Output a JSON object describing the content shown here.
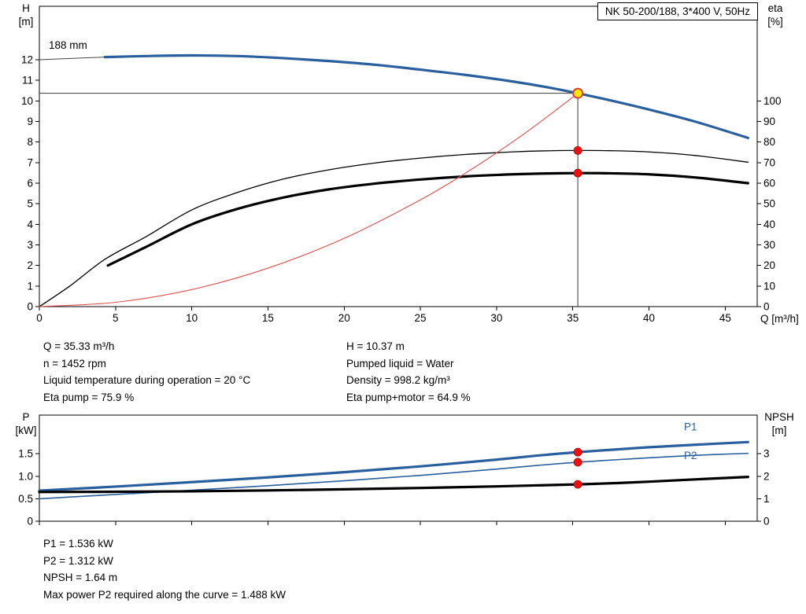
{
  "title_box": "NK 50-200/188, 3*400 V, 50Hz",
  "impeller_label": "188 mm",
  "axis_titles": {
    "h": "H\n[m]",
    "eta": "eta\n[%]",
    "q": "Q [m³/h]",
    "p": "P\n[kW]",
    "npsh": "NPSH\n[m]"
  },
  "info_top": {
    "col1": [
      "Q = 35.33 m³/h",
      "n = 1452 rpm",
      "Liquid temperature during operation = 20 °C",
      "Eta pump = 75.9 %"
    ],
    "col2": [
      "H = 10.37 m",
      "Pumped liquid = Water",
      "Density = 998.2 kg/m³",
      "Eta pump+motor = 64.9 %"
    ]
  },
  "info_bottom": [
    "P1 = 1.536 kW",
    "P2 = 1.312 kW",
    "NPSH = 1.64 m",
    "Max power P2 required along the curve = 1.488 kW"
  ],
  "colors": {
    "curve_blue": "#2a5f9e",
    "curve_black": "#000000",
    "system_red": "#e05050",
    "dot_red": "#ee1111",
    "duty_fill": "#ffe800",
    "duty_ring": "#e03030",
    "duty_line": "#3a3a3a"
  },
  "chart_data": [
    {
      "type": "line",
      "title": "NK 50-200/188, 3*400 V, 50Hz",
      "xlabel": "Q [m³/h]",
      "ylabel_left": "H [m]",
      "ylabel_right": "eta [%]",
      "xlim": [
        0,
        47.1
      ],
      "ylim_left": [
        0,
        14.6
      ],
      "ylim_right": [
        0,
        146
      ],
      "grid": false,
      "x_ticks": [
        [
          0,
          "0"
        ],
        [
          5,
          "5"
        ],
        [
          10,
          "10"
        ],
        [
          15,
          "15"
        ],
        [
          20,
          "20"
        ],
        [
          25,
          "25"
        ],
        [
          30,
          "30"
        ],
        [
          35,
          "35"
        ],
        [
          40,
          "40"
        ],
        [
          45,
          "45"
        ]
      ],
      "y_ticks_left": [
        [
          0,
          "0"
        ],
        [
          1,
          "1"
        ],
        [
          2,
          "2"
        ],
        [
          3,
          "3"
        ],
        [
          4,
          "4"
        ],
        [
          5,
          "5"
        ],
        [
          6,
          "6"
        ],
        [
          7,
          "7"
        ],
        [
          8,
          "8"
        ],
        [
          9,
          "9"
        ],
        [
          10,
          "10"
        ],
        [
          11,
          "11"
        ],
        [
          12,
          "12"
        ]
      ],
      "y_ticks_right": [
        [
          0,
          "0"
        ],
        [
          10,
          "10"
        ],
        [
          20,
          "20"
        ],
        [
          30,
          "30"
        ],
        [
          40,
          "40"
        ],
        [
          50,
          "50"
        ],
        [
          60,
          "60"
        ],
        [
          70,
          "70"
        ],
        [
          80,
          "80"
        ],
        [
          90,
          "90"
        ],
        [
          100,
          "100"
        ]
      ],
      "duty_lines": {
        "q": 35.33,
        "h": 10.37
      },
      "series": [
        {
          "name": "h-curve-leader",
          "axis": "left",
          "color": "#444444",
          "width": 1,
          "points": [
            [
              0,
              12.0
            ],
            [
              2.2,
              12.07
            ],
            [
              4.3,
              12.13
            ]
          ]
        },
        {
          "name": "h-curve-188mm",
          "axis": "left",
          "color": "#2a5f9e",
          "width": 3.2,
          "points": [
            [
              4.3,
              12.13
            ],
            [
              7,
              12.18
            ],
            [
              10,
              12.21
            ],
            [
              13,
              12.18
            ],
            [
              16,
              12.08
            ],
            [
              19,
              11.94
            ],
            [
              22,
              11.76
            ],
            [
              25,
              11.52
            ],
            [
              28,
              11.26
            ],
            [
              31,
              10.95
            ],
            [
              33.2,
              10.68
            ],
            [
              35.33,
              10.37
            ],
            [
              37.5,
              10.02
            ],
            [
              40,
              9.58
            ],
            [
              43,
              9.0
            ],
            [
              46.5,
              8.2
            ]
          ]
        },
        {
          "name": "eta-pump-curve",
          "axis": "right",
          "color": "#000000",
          "width": 1.3,
          "points": [
            [
              0,
              0
            ],
            [
              2,
              10
            ],
            [
              4.3,
              23
            ],
            [
              7,
              34
            ],
            [
              10,
              47
            ],
            [
              13,
              55.5
            ],
            [
              16,
              62
            ],
            [
              19,
              66.5
            ],
            [
              22,
              69.8
            ],
            [
              25,
              72.2
            ],
            [
              28,
              74
            ],
            [
              31,
              75.2
            ],
            [
              33,
              75.7
            ],
            [
              35.33,
              75.9
            ],
            [
              37.5,
              75.8
            ],
            [
              40,
              75.2
            ],
            [
              43,
              73.5
            ],
            [
              46.5,
              70.2
            ]
          ]
        },
        {
          "name": "eta-pump-motor-curve",
          "axis": "right",
          "color": "#000000",
          "width": 3.2,
          "points": [
            [
              4.5,
              20
            ],
            [
              7,
              29
            ],
            [
              10,
              40
            ],
            [
              13,
              47.5
            ],
            [
              16,
              53
            ],
            [
              19,
              57
            ],
            [
              22,
              59.8
            ],
            [
              25,
              61.8
            ],
            [
              28,
              63.3
            ],
            [
              31,
              64.3
            ],
            [
              33,
              64.7
            ],
            [
              35.33,
              64.9
            ],
            [
              37.5,
              64.8
            ],
            [
              40,
              64.3
            ],
            [
              43,
              62.8
            ],
            [
              46.5,
              60
            ]
          ]
        },
        {
          "name": "system-curve",
          "axis": "left",
          "color": "#e05050",
          "width": 1.1,
          "points": [
            [
              0,
              0
            ],
            [
              5,
              0.21
            ],
            [
              10,
              0.83
            ],
            [
              15,
              1.87
            ],
            [
              20,
              3.32
            ],
            [
              25,
              5.19
            ],
            [
              28,
              6.51
            ],
            [
              31,
              7.98
            ],
            [
              33,
              9.05
            ],
            [
              35.33,
              10.37
            ]
          ]
        }
      ],
      "labels": [],
      "markers": [
        {
          "x": 35.33,
          "y": 10.37,
          "axis": "left",
          "style": "duty",
          "name": "duty-point"
        },
        {
          "x": 35.33,
          "y": 75.9,
          "axis": "right",
          "style": "dot",
          "name": "eta-pump-point"
        },
        {
          "x": 35.33,
          "y": 64.9,
          "axis": "right",
          "style": "dot",
          "name": "eta-pump-motor-point"
        }
      ]
    },
    {
      "type": "line",
      "title": "",
      "xlabel": "",
      "ylabel_left": "P [kW]",
      "ylabel_right": "NPSH [m]",
      "xlim": [
        0,
        47.1
      ],
      "ylim_left": [
        0,
        2.36
      ],
      "ylim_right": [
        0,
        4.72
      ],
      "grid": false,
      "x_ticks": [
        [
          0,
          ""
        ],
        [
          5,
          ""
        ],
        [
          10,
          ""
        ],
        [
          15,
          ""
        ],
        [
          20,
          ""
        ],
        [
          25,
          ""
        ],
        [
          30,
          ""
        ],
        [
          35,
          ""
        ],
        [
          40,
          ""
        ],
        [
          45,
          ""
        ]
      ],
      "y_ticks_left": [
        [
          0,
          "0"
        ],
        [
          0.5,
          "0.5"
        ],
        [
          1,
          "1.0"
        ],
        [
          1.5,
          "1.5"
        ]
      ],
      "y_ticks_right": [
        [
          0,
          "0"
        ],
        [
          1,
          "1"
        ],
        [
          2,
          "2"
        ],
        [
          3,
          "3"
        ]
      ],
      "duty_lines": null,
      "series": [
        {
          "name": "p1-curve",
          "axis": "left",
          "color": "#2a5f9e",
          "width": 3.2,
          "points": [
            [
              0,
              0.68
            ],
            [
              5,
              0.77
            ],
            [
              10,
              0.87
            ],
            [
              15,
              0.975
            ],
            [
              20,
              1.09
            ],
            [
              25,
              1.22
            ],
            [
              30,
              1.37
            ],
            [
              33,
              1.47
            ],
            [
              35.33,
              1.536
            ],
            [
              38,
              1.6
            ],
            [
              40,
              1.645
            ],
            [
              43,
              1.7
            ],
            [
              46.5,
              1.76
            ]
          ]
        },
        {
          "name": "p2-curve",
          "axis": "left",
          "color": "#2a5f9e",
          "width": 1.6,
          "points": [
            [
              0,
              0.5
            ],
            [
              5,
              0.595
            ],
            [
              10,
              0.69
            ],
            [
              15,
              0.79
            ],
            [
              20,
              0.9
            ],
            [
              25,
              1.02
            ],
            [
              30,
              1.16
            ],
            [
              33,
              1.25
            ],
            [
              35.33,
              1.312
            ],
            [
              38,
              1.37
            ],
            [
              40,
              1.41
            ],
            [
              43,
              1.465
            ],
            [
              46.5,
              1.51
            ]
          ]
        },
        {
          "name": "npsh-curve",
          "axis": "right",
          "color": "#000000",
          "width": 3.2,
          "points": [
            [
              0,
              1.3
            ],
            [
              5,
              1.31
            ],
            [
              10,
              1.33
            ],
            [
              15,
              1.37
            ],
            [
              20,
              1.42
            ],
            [
              25,
              1.48
            ],
            [
              30,
              1.55
            ],
            [
              33,
              1.6
            ],
            [
              35.33,
              1.64
            ],
            [
              38,
              1.7
            ],
            [
              40,
              1.76
            ],
            [
              43,
              1.86
            ],
            [
              46.5,
              1.97
            ]
          ]
        }
      ],
      "labels": [
        {
          "text": "P1",
          "x": 42.3,
          "y": 2.02,
          "axis": "left",
          "color": "#2a5f9e",
          "name": "p1-label"
        },
        {
          "text": "P2",
          "x": 42.3,
          "y": 1.38,
          "axis": "left",
          "color": "#2a5f9e",
          "name": "p2-label"
        }
      ],
      "markers": [
        {
          "x": 35.33,
          "y": 1.536,
          "axis": "left",
          "style": "dot",
          "name": "p1-point"
        },
        {
          "x": 35.33,
          "y": 1.312,
          "axis": "left",
          "style": "dot",
          "name": "p2-point"
        },
        {
          "x": 35.33,
          "y": 1.64,
          "axis": "right",
          "style": "dot",
          "name": "npsh-point"
        }
      ]
    }
  ]
}
